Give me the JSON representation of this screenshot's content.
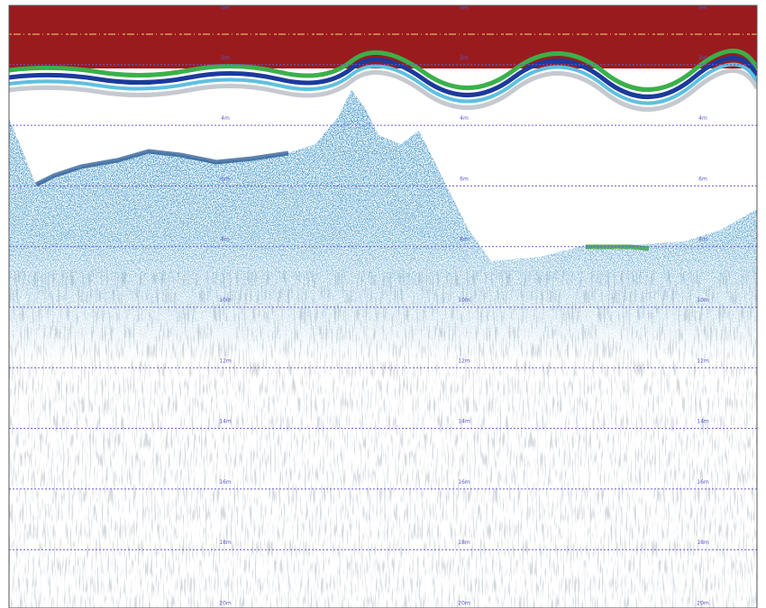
{
  "depth_labels": [
    "0m",
    "2m",
    "4m",
    "6m",
    "8m",
    "10m",
    "12m",
    "14m",
    "16m",
    "18m",
    "20m"
  ]
}
